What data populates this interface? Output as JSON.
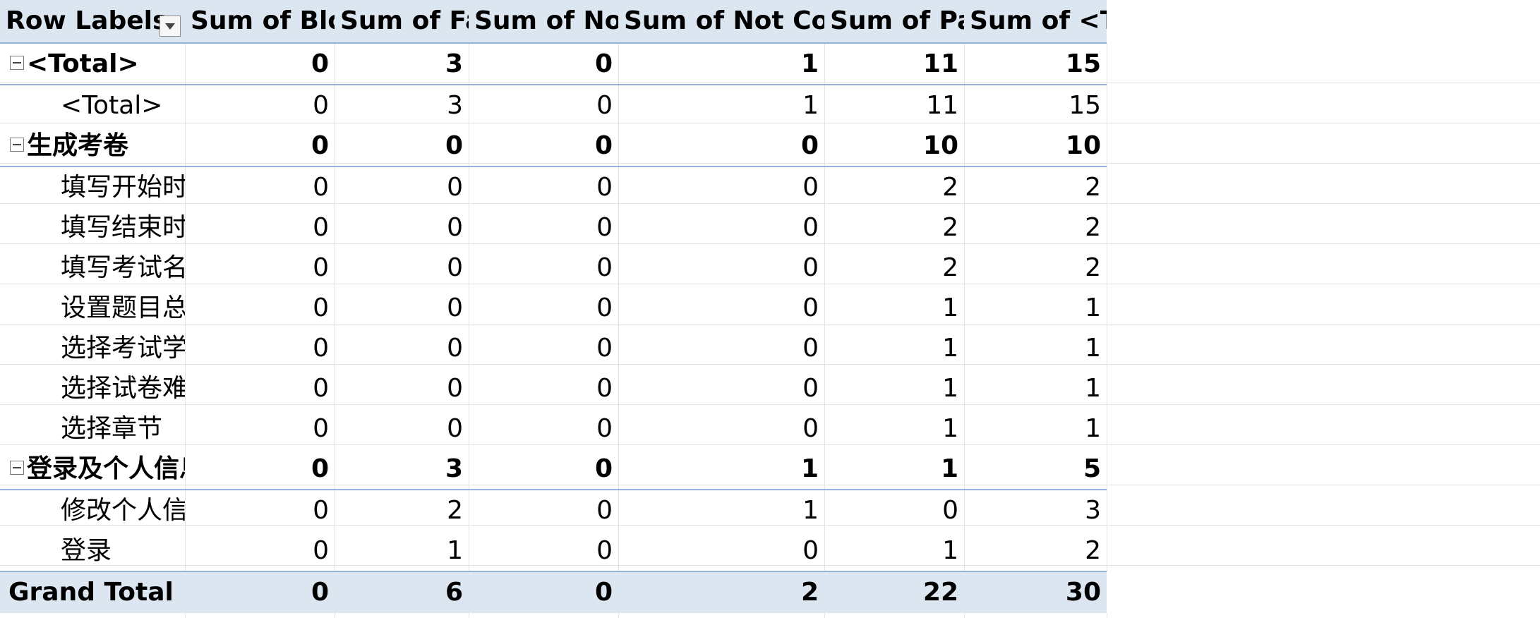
{
  "pivot": {
    "headers": {
      "row_labels": "Row Labels",
      "blocked": "Sum of Blocked",
      "failed": "Sum of Failed",
      "not_run": "Sum of Not Run",
      "not_complete": "Sum of Not Complete",
      "passed": "Sum of Passed",
      "total": "Sum of <Total>"
    },
    "rows": [
      {
        "level": "group",
        "label": "<Total>",
        "blocked": "0",
        "failed": "3",
        "not_run": "0",
        "not_complete": "1",
        "passed": "11",
        "total": "15"
      },
      {
        "level": "child",
        "label": "<Total>",
        "blocked": "0",
        "failed": "3",
        "not_run": "0",
        "not_complete": "1",
        "passed": "11",
        "total": "15"
      },
      {
        "level": "group",
        "label": "生成考卷",
        "blocked": "0",
        "failed": "0",
        "not_run": "0",
        "not_complete": "0",
        "passed": "10",
        "total": "10"
      },
      {
        "level": "child",
        "label": "填写开始时间",
        "blocked": "0",
        "failed": "0",
        "not_run": "0",
        "not_complete": "0",
        "passed": "2",
        "total": "2"
      },
      {
        "level": "child",
        "label": "填写结束时间",
        "blocked": "0",
        "failed": "0",
        "not_run": "0",
        "not_complete": "0",
        "passed": "2",
        "total": "2"
      },
      {
        "level": "child",
        "label": "填写考试名称",
        "blocked": "0",
        "failed": "0",
        "not_run": "0",
        "not_complete": "0",
        "passed": "2",
        "total": "2"
      },
      {
        "level": "child",
        "label": "设置题目总数",
        "blocked": "0",
        "failed": "0",
        "not_run": "0",
        "not_complete": "0",
        "passed": "1",
        "total": "1"
      },
      {
        "level": "child",
        "label": "选择考试学生",
        "blocked": "0",
        "failed": "0",
        "not_run": "0",
        "not_complete": "0",
        "passed": "1",
        "total": "1"
      },
      {
        "level": "child",
        "label": "选择试卷难度",
        "blocked": "0",
        "failed": "0",
        "not_run": "0",
        "not_complete": "0",
        "passed": "1",
        "total": "1"
      },
      {
        "level": "child",
        "label": "选择章节",
        "blocked": "0",
        "failed": "0",
        "not_run": "0",
        "not_complete": "0",
        "passed": "1",
        "total": "1"
      },
      {
        "level": "group",
        "label": "登录及个人信息",
        "blocked": "0",
        "failed": "3",
        "not_run": "0",
        "not_complete": "1",
        "passed": "1",
        "total": "5"
      },
      {
        "level": "child",
        "label": "修改个人信息",
        "blocked": "0",
        "failed": "2",
        "not_run": "0",
        "not_complete": "1",
        "passed": "0",
        "total": "3"
      },
      {
        "level": "child",
        "label": "登录",
        "blocked": "0",
        "failed": "1",
        "not_run": "0",
        "not_complete": "0",
        "passed": "1",
        "total": "2"
      }
    ],
    "grand_total": {
      "label": "Grand Total",
      "blocked": "0",
      "failed": "6",
      "not_run": "0",
      "not_complete": "2",
      "passed": "22",
      "total": "30"
    }
  }
}
